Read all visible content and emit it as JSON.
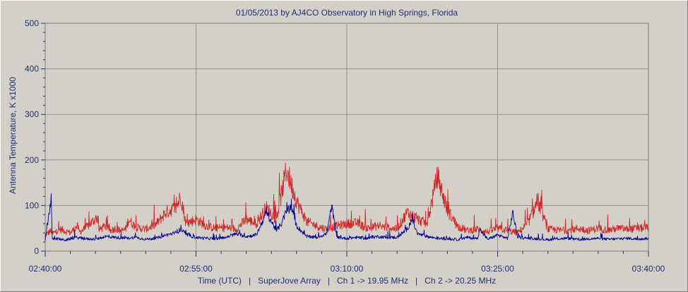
{
  "chart_data": {
    "type": "line",
    "title": "01/05/2013  by  AJ4CO Observatory  in  High Springs, Florida",
    "ylabel": "Antenna Temperature, K x1000",
    "xlabel": "Time (UTC)   |   SuperJove Array   |   Ch 1 -> 19.95 MHz   |   Ch 2 -> 20.25 MHz",
    "x_ticks": [
      "02:40:00",
      "02:55:00",
      "03:10:00",
      "03:25:00",
      "03:40:00"
    ],
    "y_ticks": [
      "0",
      "100",
      "200",
      "300",
      "400",
      "500"
    ],
    "xlim_minutes": [
      0,
      60
    ],
    "ylim": [
      0,
      500
    ],
    "grid": true,
    "colors": {
      "background": "#d4d0c8",
      "grid": "#909090",
      "text": "#1c2f7a",
      "ch1": "#cc2a2a",
      "ch2": "#00008f"
    },
    "series": [
      {
        "channel": "Ch 1 -> 19.95 MHz",
        "color": "#cc2a2a",
        "x_minutes": [
          0,
          0.6,
          0.7,
          1.5,
          2.5,
          3.2,
          3.4,
          4.0,
          5.2,
          5.3,
          6.0,
          6.5,
          7.0,
          7.5,
          8.0,
          8.3,
          9.0,
          10.0,
          11.0,
          12.0,
          13.0,
          13.5,
          14.0,
          15.0,
          16.0,
          17.0,
          18.0,
          19.0,
          20.0,
          21.0,
          22.0,
          23.0,
          24.0,
          25.0,
          26.0,
          27.0,
          28.0,
          29.0,
          30.0,
          31.0,
          32.0,
          33.0,
          34.0,
          35.0,
          36.0,
          37.0,
          38.0,
          39.0,
          40.0,
          41.0,
          42.0,
          43.0,
          44.0,
          45.0,
          46.0,
          47.0,
          48.0,
          49.0,
          50.0,
          51.0,
          52.0,
          53.0,
          54.0,
          55.0,
          56.0,
          57.0,
          58.0,
          59.0,
          60.0
        ],
        "values": [
          35,
          45,
          38,
          48,
          40,
          55,
          42,
          50,
          75,
          46,
          55,
          45,
          50,
          44,
          48,
          70,
          52,
          48,
          58,
          85,
          95,
          120,
          60,
          70,
          55,
          50,
          52,
          48,
          70,
          60,
          95,
          70,
          180,
          110,
          65,
          55,
          48,
          55,
          60,
          62,
          50,
          55,
          52,
          48,
          85,
          70,
          60,
          165,
          90,
          55,
          45,
          48,
          42,
          50,
          45,
          40,
          60,
          110,
          48,
          46,
          45,
          50,
          45,
          50,
          46,
          50,
          48,
          50,
          52
        ]
      },
      {
        "channel": "Ch 2 -> 20.25 MHz",
        "color": "#00008f",
        "x_minutes": [
          0,
          0.6,
          0.7,
          1.0,
          2.0,
          3.0,
          4.0,
          5.0,
          6.0,
          7.0,
          8.0,
          9.0,
          10.0,
          11.0,
          12.0,
          13.0,
          13.5,
          14.0,
          15.0,
          16.0,
          17.0,
          18.0,
          19.0,
          20.0,
          21.0,
          22.0,
          23.0,
          23.5,
          24.0,
          24.5,
          25.0,
          26.0,
          27.0,
          28.0,
          28.5,
          29.0,
          30.0,
          31.0,
          32.0,
          33.0,
          34.0,
          35.0,
          36.0,
          36.5,
          37.0,
          38.0,
          39.0,
          40.0,
          41.0,
          42.0,
          43.0,
          43.2,
          44.0,
          45.0,
          46.0,
          46.5,
          47.0,
          48.0,
          49.0,
          50.0,
          51.0,
          52.0,
          53.0,
          54.0,
          55.0,
          56.0,
          57.0,
          58.0,
          59.0,
          60.0
        ],
        "values": [
          22,
          118,
          25,
          28,
          24,
          30,
          27,
          26,
          32,
          30,
          28,
          30,
          26,
          28,
          35,
          40,
          48,
          36,
          30,
          28,
          27,
          30,
          38,
          32,
          35,
          85,
          45,
          60,
          88,
          95,
          55,
          32,
          30,
          38,
          100,
          30,
          28,
          30,
          28,
          32,
          30,
          30,
          48,
          70,
          38,
          32,
          28,
          27,
          25,
          30,
          27,
          48,
          26,
          35,
          28,
          85,
          30,
          28,
          27,
          25,
          27,
          28,
          25,
          27,
          28,
          26,
          27,
          28,
          26,
          28
        ]
      }
    ]
  }
}
